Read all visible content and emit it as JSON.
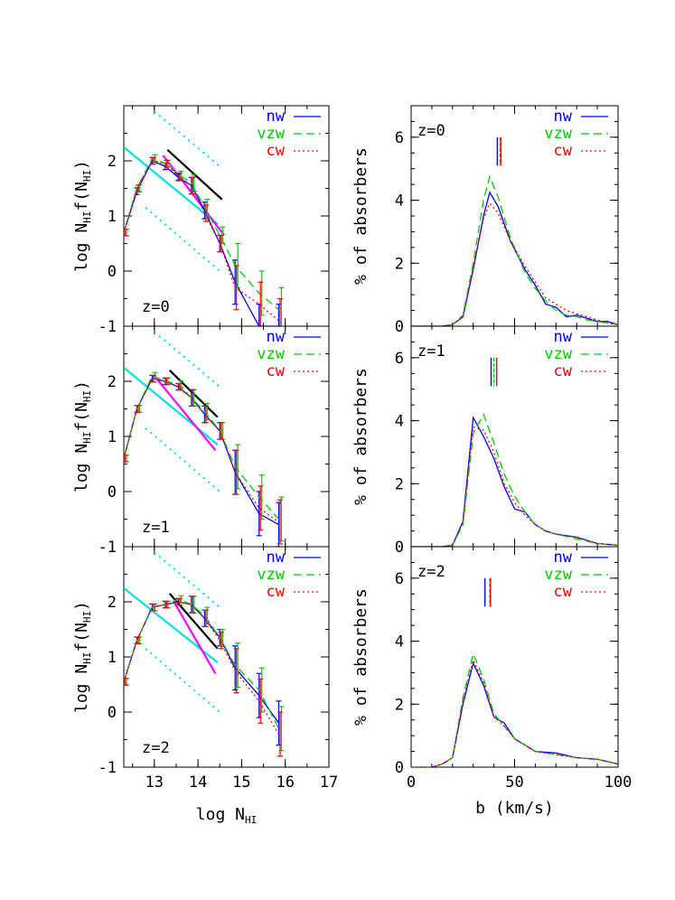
{
  "colors": {
    "nw": "#0000ff",
    "vzw": "#00cc00",
    "cw": "#ff0000",
    "cyan": "#00e0e0",
    "magenta": "#ff00ff",
    "black": "#000000"
  },
  "chart_data": [
    {
      "type": "line",
      "panel": "left",
      "xlabel": "log  N_HI",
      "ylabel": "log  N_HI f(N_HI)",
      "xlim": [
        12.3,
        17
      ],
      "xticks": [
        13,
        14,
        15,
        16,
        17
      ],
      "ylim": [
        -1,
        3
      ],
      "yticks": [
        -1,
        0,
        1,
        2
      ],
      "legend": [
        "nw",
        "vzw",
        "cw"
      ],
      "x": [
        12.3,
        12.6,
        12.95,
        13.25,
        13.55,
        13.85,
        14.15,
        14.5,
        14.85,
        15.4,
        15.85
      ],
      "panels": [
        {
          "label": "z=0",
          "series": [
            {
              "name": "nw",
              "values": [
                0.7,
                1.45,
                2.0,
                1.9,
                1.7,
                1.55,
                1.1,
                0.5,
                -0.2,
                -1.0,
                -1.0
              ]
            },
            {
              "name": "vzw",
              "values": [
                0.7,
                1.5,
                2.05,
                1.95,
                1.75,
                1.6,
                1.15,
                0.65,
                0.1,
                -0.4,
                -0.7
              ]
            },
            {
              "name": "cw",
              "values": [
                0.7,
                1.5,
                2.0,
                1.95,
                1.72,
                1.55,
                1.05,
                0.5,
                -0.3,
                -0.6,
                -0.9
              ]
            }
          ],
          "fits": [
            {
              "color": "cyan",
              "x": [
                12.3,
                14.45
              ],
              "y": [
                2.25,
                0.85
              ]
            },
            {
              "color": "magenta",
              "x": [
                13.2,
                14.6
              ],
              "y": [
                2.1,
                0.65
              ]
            },
            {
              "color": "black",
              "x": [
                13.3,
                14.55
              ],
              "y": [
                2.2,
                1.3
              ]
            },
            {
              "color": "cyan",
              "dashed": true,
              "x": [
                13.0,
                14.5
              ],
              "y": [
                2.9,
                1.9
              ]
            },
            {
              "color": "cyan",
              "dashed": true,
              "x": [
                12.8,
                14.5
              ],
              "y": [
                1.15,
                0.0
              ]
            }
          ]
        },
        {
          "label": "z=1",
          "series": [
            {
              "name": "nw",
              "values": [
                0.6,
                1.5,
                2.05,
                2.0,
                1.9,
                1.7,
                1.4,
                1.1,
                0.35,
                -0.4,
                -0.6
              ]
            },
            {
              "name": "vzw",
              "values": [
                0.6,
                1.5,
                2.1,
                2.0,
                1.95,
                1.7,
                1.45,
                1.1,
                0.45,
                -0.1,
                -0.5
              ]
            },
            {
              "name": "cw",
              "values": [
                0.6,
                1.5,
                2.05,
                2.0,
                1.9,
                1.7,
                1.4,
                1.1,
                0.35,
                -0.3,
                -0.55
              ]
            }
          ],
          "fits": [
            {
              "color": "cyan",
              "x": [
                12.3,
                14.45
              ],
              "y": [
                2.25,
                0.85
              ]
            },
            {
              "color": "magenta",
              "x": [
                13.0,
                14.4
              ],
              "y": [
                2.1,
                0.75
              ]
            },
            {
              "color": "black",
              "x": [
                13.35,
                14.45
              ],
              "y": [
                2.2,
                1.35
              ]
            },
            {
              "color": "cyan",
              "dashed": true,
              "x": [
                13.0,
                14.5
              ],
              "y": [
                2.9,
                1.9
              ]
            },
            {
              "color": "cyan",
              "dashed": true,
              "x": [
                12.8,
                14.5
              ],
              "y": [
                1.15,
                0.0
              ]
            }
          ]
        },
        {
          "label": "z=2",
          "series": [
            {
              "name": "nw",
              "values": [
                0.55,
                1.3,
                1.9,
                1.95,
                2.0,
                1.95,
                1.7,
                1.35,
                0.8,
                0.3,
                -0.2
              ]
            },
            {
              "name": "vzw",
              "values": [
                0.55,
                1.3,
                1.9,
                1.95,
                2.05,
                1.95,
                1.75,
                1.35,
                0.85,
                0.4,
                -0.3
              ]
            },
            {
              "name": "cw",
              "values": [
                0.55,
                1.3,
                1.9,
                1.95,
                2.0,
                1.95,
                1.7,
                1.3,
                0.75,
                0.2,
                -0.4
              ]
            }
          ],
          "fits": [
            {
              "color": "cyan",
              "x": [
                12.3,
                14.45
              ],
              "y": [
                2.25,
                0.9
              ]
            },
            {
              "color": "magenta",
              "x": [
                13.45,
                14.4
              ],
              "y": [
                2.0,
                0.7
              ]
            },
            {
              "color": "black",
              "x": [
                13.35,
                14.45
              ],
              "y": [
                2.15,
                1.15
              ]
            },
            {
              "color": "cyan",
              "dashed": true,
              "x": [
                13.0,
                14.5
              ],
              "y": [
                2.9,
                1.9
              ]
            },
            {
              "color": "cyan",
              "dashed": true,
              "x": [
                12.8,
                14.5
              ],
              "y": [
                1.15,
                0.0
              ]
            }
          ]
        }
      ]
    },
    {
      "type": "line",
      "panel": "right",
      "xlabel": "b  (km/s)",
      "ylabel": "% of absorbers",
      "xlim": [
        0,
        100
      ],
      "xticks": [
        0,
        50,
        100
      ],
      "ylim": [
        0,
        7
      ],
      "yticks": [
        0,
        2,
        4,
        6
      ],
      "legend": [
        "nw",
        "vzw",
        "cw"
      ],
      "panels": [
        {
          "label": "z=0",
          "markers": [
            42,
            43,
            43
          ],
          "series": [
            {
              "name": "nw",
              "x": [
                0,
                15,
                20,
                25,
                30,
                35,
                38,
                42,
                48,
                55,
                60,
                65,
                70,
                75,
                80,
                85,
                90,
                95,
                100
              ],
              "values": [
                0,
                0,
                0.05,
                0.3,
                1.8,
                3.5,
                4.25,
                3.8,
                2.7,
                1.8,
                1.3,
                0.7,
                0.6,
                0.3,
                0.35,
                0.25,
                0.15,
                0.15,
                0.05
              ]
            },
            {
              "name": "vzw",
              "x": [
                0,
                15,
                20,
                25,
                30,
                35,
                38,
                42,
                48,
                55,
                60,
                65,
                70,
                75,
                80,
                85,
                90,
                95,
                100
              ],
              "values": [
                0,
                0,
                0.05,
                0.35,
                2.0,
                4.0,
                4.75,
                4.1,
                2.8,
                1.7,
                1.2,
                0.8,
                0.5,
                0.35,
                0.3,
                0.2,
                0.15,
                0.1,
                0.05
              ]
            },
            {
              "name": "cw",
              "x": [
                0,
                15,
                20,
                25,
                30,
                35,
                38,
                42,
                48,
                55,
                60,
                65,
                70,
                75,
                80,
                85,
                90,
                95,
                100
              ],
              "values": [
                0,
                0,
                0.05,
                0.3,
                1.9,
                3.4,
                3.9,
                3.6,
                2.7,
                1.9,
                1.4,
                0.9,
                0.7,
                0.5,
                0.4,
                0.3,
                0.2,
                0.1,
                0.05
              ]
            }
          ]
        },
        {
          "label": "z=1",
          "markers": [
            39,
            40,
            41
          ],
          "series": [
            {
              "name": "nw",
              "x": [
                0,
                15,
                20,
                25,
                30,
                35,
                40,
                45,
                50,
                55,
                60,
                65,
                70,
                80,
                90,
                100
              ],
              "values": [
                0,
                0,
                0.05,
                0.8,
                4.1,
                3.5,
                2.8,
                1.9,
                1.2,
                1.1,
                0.7,
                0.5,
                0.4,
                0.3,
                0.1,
                0.05
              ]
            },
            {
              "name": "vzw",
              "x": [
                0,
                15,
                20,
                25,
                30,
                35,
                40,
                45,
                50,
                55,
                60,
                65,
                70,
                80,
                90,
                100
              ],
              "values": [
                0,
                0,
                0.05,
                0.7,
                3.6,
                4.2,
                3.3,
                2.3,
                1.6,
                1.1,
                0.7,
                0.5,
                0.4,
                0.25,
                0.1,
                0.05
              ]
            },
            {
              "name": "cw",
              "x": [
                0,
                15,
                20,
                25,
                30,
                35,
                40,
                45,
                50,
                55,
                60,
                65,
                70,
                80,
                90,
                100
              ],
              "values": [
                0,
                0,
                0.05,
                0.75,
                3.8,
                3.7,
                3.0,
                2.0,
                1.4,
                1.0,
                0.7,
                0.5,
                0.4,
                0.3,
                0.1,
                0.05
              ]
            }
          ]
        },
        {
          "label": "z=2",
          "markers": [
            36,
            38,
            38
          ],
          "series": [
            {
              "name": "nw",
              "x": [
                0,
                10,
                15,
                20,
                25,
                30,
                35,
                40,
                45,
                50,
                55,
                60,
                70,
                80,
                90,
                100
              ],
              "values": [
                0,
                0,
                0.1,
                0.3,
                2.0,
                3.3,
                2.6,
                1.6,
                1.4,
                0.9,
                0.7,
                0.5,
                0.45,
                0.3,
                0.25,
                0.1
              ]
            },
            {
              "name": "vzw",
              "x": [
                0,
                10,
                15,
                20,
                25,
                30,
                35,
                40,
                45,
                50,
                55,
                60,
                70,
                80,
                90,
                100
              ],
              "values": [
                0,
                0,
                0.1,
                0.3,
                2.2,
                3.6,
                2.8,
                1.7,
                1.3,
                0.9,
                0.7,
                0.5,
                0.4,
                0.3,
                0.25,
                0.1
              ]
            },
            {
              "name": "cw",
              "x": [
                0,
                10,
                15,
                20,
                25,
                30,
                35,
                40,
                45,
                50,
                55,
                60,
                70,
                80,
                90,
                100
              ],
              "values": [
                0,
                0,
                0.1,
                0.3,
                2.1,
                3.4,
                2.7,
                1.6,
                1.3,
                0.9,
                0.7,
                0.5,
                0.4,
                0.3,
                0.25,
                0.1
              ]
            }
          ]
        }
      ]
    }
  ]
}
